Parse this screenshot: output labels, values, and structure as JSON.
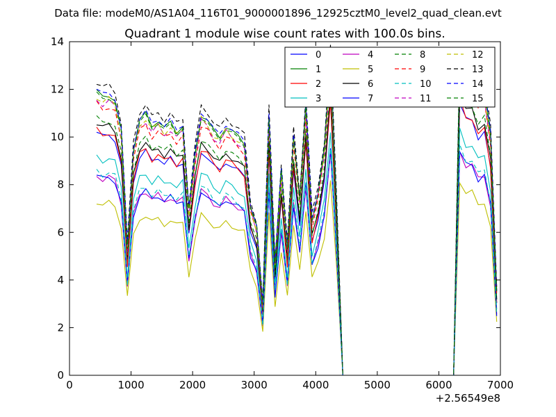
{
  "suptitle": "Data file: modeM0/AS1A04_116T01_9000001896_12925cztM0_level2_quad_clean.evt",
  "chart_data": {
    "type": "line",
    "title": "Quadrant 1 module wise count rates with 100.0s bins.",
    "xlabel": "",
    "ylabel": "",
    "x_offset_label": "+2.56549e8",
    "xlim": [
      0,
      7000
    ],
    "ylim": [
      0,
      14
    ],
    "xticks": [
      0,
      1000,
      2000,
      3000,
      4000,
      5000,
      6000,
      7000
    ],
    "yticks": [
      0,
      2,
      4,
      6,
      8,
      10,
      12,
      14
    ],
    "legend_position": "top-right",
    "legend_columns": 4,
    "x": [
      440,
      540,
      640,
      740,
      840,
      940,
      1040,
      1140,
      1240,
      1340,
      1440,
      1540,
      1640,
      1740,
      1840,
      1940,
      2040,
      2140,
      2240,
      2340,
      2440,
      2540,
      2640,
      2740,
      2840,
      2940,
      3040,
      3140,
      3240,
      3340,
      3440,
      3540,
      3640,
      3740,
      3840,
      3940,
      4040,
      4140,
      4240,
      4340,
      4440,
      4540,
      4640,
      4740,
      4840,
      4940,
      5040,
      5140,
      5240,
      5340,
      5440,
      5540,
      5640,
      5740,
      5840,
      5940,
      6040,
      6140,
      6240,
      6340,
      6440,
      6540,
      6640,
      6740,
      6840,
      6940
    ],
    "base_profile": [
      1.0,
      0.98,
      0.99,
      0.97,
      0.86,
      0.45,
      0.8,
      0.9,
      0.92,
      0.88,
      0.9,
      0.87,
      0.89,
      0.86,
      0.88,
      0.58,
      0.78,
      0.92,
      0.9,
      0.86,
      0.84,
      0.88,
      0.86,
      0.84,
      0.82,
      0.6,
      0.52,
      0.25,
      0.92,
      0.4,
      0.72,
      0.45,
      0.85,
      0.62,
      0.95,
      0.55,
      0.65,
      0.8,
      1.12,
      0.6,
      0.0,
      0.0,
      0.0,
      0.0,
      0.0,
      0.0,
      0.0,
      0.0,
      0.0,
      0.0,
      0.0,
      0.0,
      0.0,
      0.0,
      0.0,
      0.0,
      0.0,
      0.0,
      0.0,
      1.12,
      1.05,
      1.05,
      0.98,
      1.0,
      0.85,
      0.3
    ],
    "series": [
      {
        "name": "0",
        "color": "#0000ff",
        "style": "solid",
        "level": 10.2
      },
      {
        "name": "1",
        "color": "#008000",
        "style": "solid",
        "level": 11.9
      },
      {
        "name": "2",
        "color": "#ff0000",
        "style": "solid",
        "level": 10.3
      },
      {
        "name": "3",
        "color": "#00bfbf",
        "style": "solid",
        "level": 9.2
      },
      {
        "name": "4",
        "color": "#bf00bf",
        "style": "solid",
        "level": 8.4
      },
      {
        "name": "5",
        "color": "#bfbf00",
        "style": "solid",
        "level": 7.3
      },
      {
        "name": "6",
        "color": "#000000",
        "style": "solid",
        "level": 10.6
      },
      {
        "name": "7",
        "color": "#0000ff",
        "style": "solid",
        "level": 8.4
      },
      {
        "name": "8",
        "color": "#008000",
        "style": "dashed",
        "level": 10.8
      },
      {
        "name": "9",
        "color": "#ff0000",
        "style": "dashed",
        "level": 11.4
      },
      {
        "name": "10",
        "color": "#00bfbf",
        "style": "dashed",
        "level": 8.6
      },
      {
        "name": "11",
        "color": "#bf00bf",
        "style": "dashed",
        "level": 11.6
      },
      {
        "name": "12",
        "color": "#bfbf00",
        "style": "dashed",
        "level": 11.7
      },
      {
        "name": "13",
        "color": "#000000",
        "style": "dashed",
        "level": 12.3
      },
      {
        "name": "14",
        "color": "#0000ff",
        "style": "dashed",
        "level": 12.0
      },
      {
        "name": "15",
        "color": "#008000",
        "style": "dashed",
        "level": 11.8
      }
    ]
  }
}
